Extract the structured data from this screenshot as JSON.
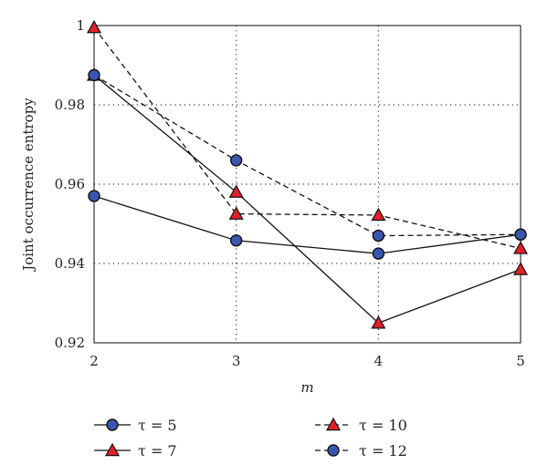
{
  "chart_data": {
    "type": "line",
    "title": "",
    "xlabel": "m",
    "ylabel": "Joint occurrence entropy",
    "x": [
      2,
      3,
      4,
      5
    ],
    "xlim": [
      2,
      5
    ],
    "ylim": [
      0.92,
      1.0
    ],
    "x_ticks": [
      "2",
      "3",
      "4",
      "5"
    ],
    "y_ticks": [
      "0.92",
      "0.94",
      "0.96",
      "0.98",
      "1"
    ],
    "grid": true,
    "legend_position": "bottom",
    "series": [
      {
        "name": "τ = 5",
        "values": [
          0.957,
          0.9458,
          0.9425,
          0.9473
        ],
        "line": "solid",
        "marker": "circle",
        "marker_color": "#3a57b0"
      },
      {
        "name": "τ = 7",
        "values": [
          0.9875,
          0.958,
          0.925,
          0.9385
        ],
        "line": "solid",
        "marker": "triangle",
        "marker_color": "#e0202a"
      },
      {
        "name": "τ = 10",
        "values": [
          0.9995,
          0.9525,
          0.9522,
          0.9438
        ],
        "line": "dashed",
        "marker": "triangle",
        "marker_color": "#e0202a"
      },
      {
        "name": "τ = 12",
        "values": [
          0.9875,
          0.966,
          0.947,
          0.9473
        ],
        "line": "dashed",
        "marker": "circle",
        "marker_color": "#3a57b0"
      }
    ]
  }
}
